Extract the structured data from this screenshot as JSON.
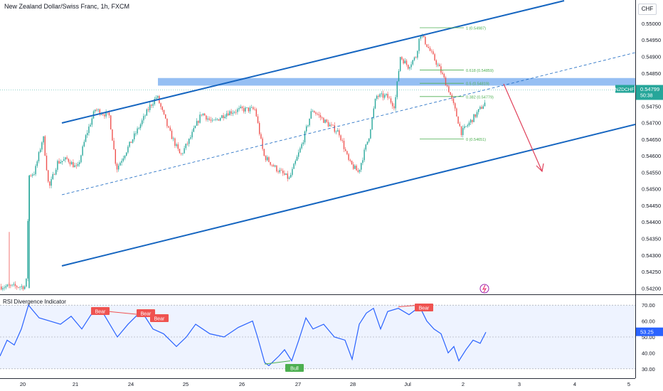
{
  "header": {
    "title": "New Zealand Dollar/Swiss Franc, 1h, FXCM",
    "currency_button": "CHF"
  },
  "indicator": {
    "title": "RSI Divergence Indicator"
  },
  "symbol_tag": "NZDCHF",
  "price_tag": "0.54799",
  "countdown": "50:38",
  "rsi_tag": "53.25",
  "colors": {
    "bull_candle": "#26a69a",
    "bear_candle": "#ef5350",
    "channel_line": "#1565c0",
    "zone_fill": "#5d9cec",
    "rsi_line": "#2962ff",
    "arrow": "#e0405a",
    "fib": "#4caf50"
  },
  "chart_data": [
    {
      "type": "candlestick",
      "symbol": "NZDCHF",
      "timeframe": "1h",
      "y_ticks": [
        "0.55000",
        "0.54950",
        "0.54900",
        "0.54850",
        "0.54800",
        "0.54750",
        "0.54700",
        "0.54650",
        "0.54600",
        "0.54550",
        "0.54500",
        "0.54450",
        "0.54400",
        "0.54350",
        "0.54300",
        "0.54250",
        "0.54200"
      ],
      "ylim": [
        0.5419,
        0.55045
      ],
      "x_ticks": [
        "20",
        "21",
        "24",
        "25",
        "26",
        "27",
        "28",
        "Jul",
        "2",
        "3",
        "4",
        "5"
      ],
      "last_price": 0.54799,
      "fib_levels": [
        {
          "label": "1 (0.54987)",
          "value": 0.54987
        },
        {
          "label": "0.618 (0.54859)",
          "value": 0.54859
        },
        {
          "label": "0.5 (0.54819)",
          "value": 0.54819
        },
        {
          "label": "0.382 (0.54779)",
          "value": 0.54779
        },
        {
          "label": "0 (0.54651)",
          "value": 0.54651
        }
      ],
      "resistance_zone": [
        0.54812,
        0.54835
      ]
    },
    {
      "type": "line",
      "name": "RSI Divergence Indicator",
      "y_ticks": [
        "70.00",
        "60.00",
        "50.00",
        "40.00",
        "30.00"
      ],
      "ylim": [
        25,
        75
      ],
      "last_value": 53.25,
      "labels": [
        "Bear",
        "Bear",
        "Bear",
        "Bull",
        "Bear"
      ]
    }
  ]
}
